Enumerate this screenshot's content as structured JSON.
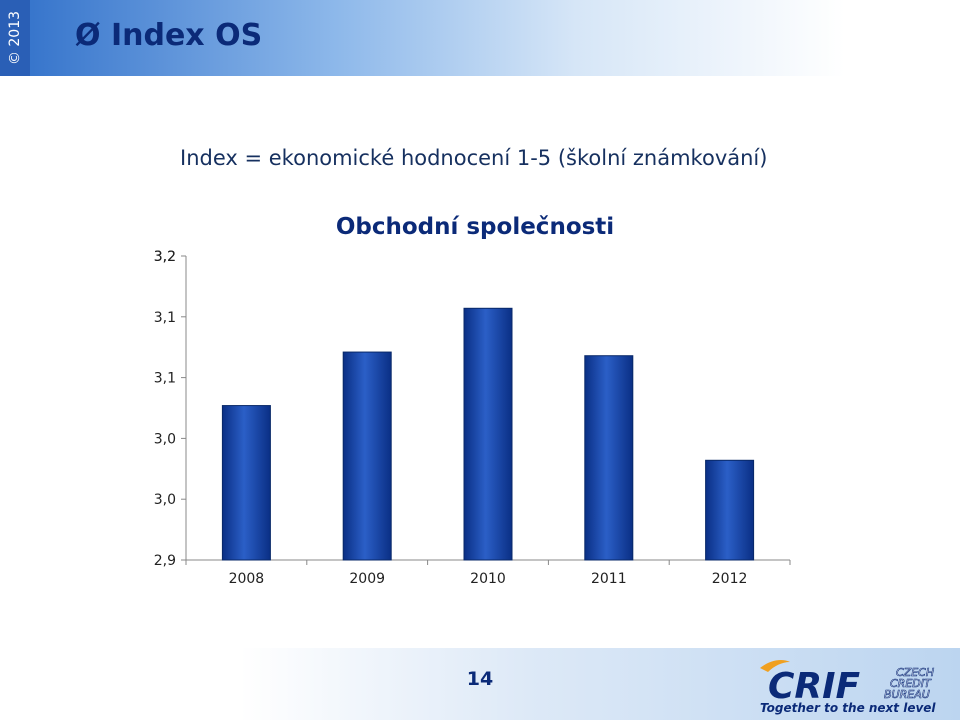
{
  "header": {
    "title": "Ø Index OS",
    "copyright": "© 2013"
  },
  "subtitle": "Index = ekonomické hodnocení 1-5 (školní známkování)",
  "colors": {
    "bar": "#0d3a9a",
    "bar_light": "#2b5fc7",
    "title": "#0b2a78",
    "header_start": "#2f6fc9"
  },
  "chart_data": {
    "type": "bar",
    "title": "Obchodní společnosti",
    "categories": [
      "2008",
      "2009",
      "2010",
      "2011",
      "2012"
    ],
    "values": [
      3.027,
      3.071,
      3.107,
      3.068,
      2.982
    ],
    "ylim": [
      2.9,
      3.15
    ],
    "y_ticks": [
      2.9,
      2.95,
      3.0,
      3.05,
      3.1,
      3.15
    ],
    "y_tick_labels": [
      "2,9",
      "3,0",
      "3,0",
      "3,1",
      "3,1",
      "3,2"
    ],
    "y_top_label": "3,2",
    "xlabel": "",
    "ylabel": "",
    "grid": false,
    "legend": "none"
  },
  "footer": {
    "page_number": "14",
    "logo_text": "CRIF",
    "logo_subtext": [
      "CZECH",
      "CREDIT",
      "BUREAU"
    ],
    "tagline": "Together to the next level"
  }
}
